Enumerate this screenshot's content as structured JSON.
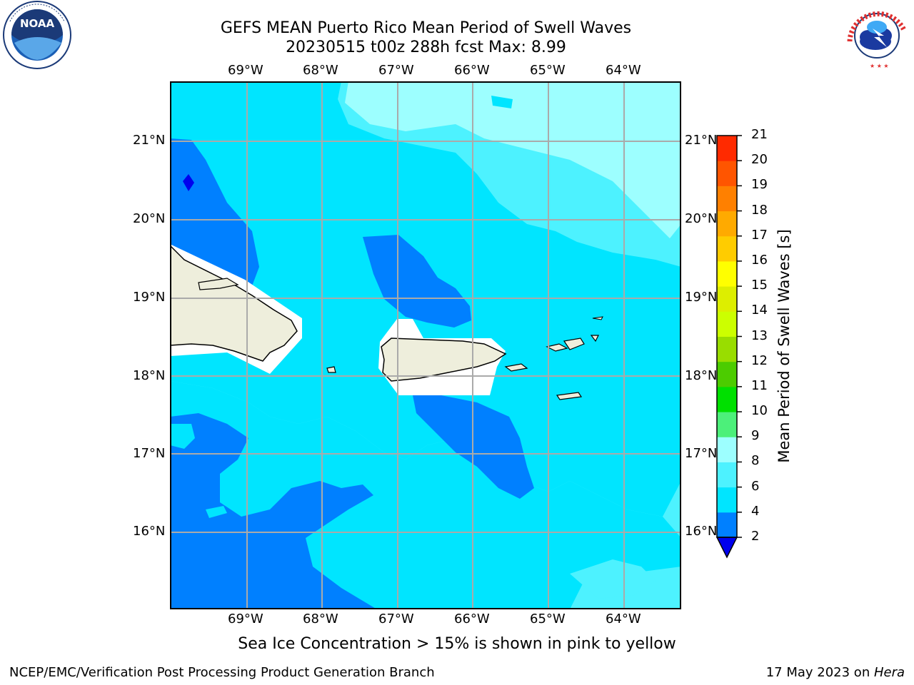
{
  "title": {
    "line1": "GEFS MEAN Puerto Rico Mean Period of Swell Waves",
    "line2": "20230515 t00z 288h fcst   Max: 8.99"
  },
  "axes": {
    "lon_labels": [
      "69°W",
      "68°W",
      "67°W",
      "66°W",
      "65°W",
      "64°W"
    ],
    "lat_labels": [
      "21°N",
      "20°N",
      "19°N",
      "18°N",
      "17°N",
      "16°N"
    ]
  },
  "colorbar": {
    "label": "Mean Period of Swell Waves [s]",
    "ticks": [
      "2",
      "4",
      "6",
      "8",
      "9",
      "10",
      "11",
      "12",
      "13",
      "14",
      "15",
      "16",
      "17",
      "18",
      "19",
      "20",
      "21"
    ],
    "colors": [
      "#0080ff",
      "#00e5ff",
      "#4df2ff",
      "#9dffff",
      "#4cf07a",
      "#00e000",
      "#4ccc00",
      "#99dd00",
      "#ccff00",
      "#ddee00",
      "#ffff00",
      "#ffcc00",
      "#ffaa00",
      "#ff8000",
      "#ff5500",
      "#ff2a00",
      "#ff0000"
    ],
    "under_color": "#0000ee"
  },
  "chart_data": {
    "type": "heatmap",
    "title": "GEFS MEAN Puerto Rico Mean Period of Swell Waves",
    "subtitle": "20230515 t00z 288h fcst   Max: 8.99",
    "variable": "Mean Period of Swell Waves [s]",
    "max": 8.99,
    "levels": [
      2,
      4,
      6,
      8,
      9,
      10,
      11,
      12,
      13,
      14,
      15,
      16,
      17,
      18,
      19,
      20,
      21
    ],
    "lon_range": [
      -70,
      -63.25
    ],
    "lat_range": [
      15,
      21.75
    ],
    "grid": true
  },
  "annotation": "Sea Ice Concentration > 15% is shown in pink to yellow",
  "footer": {
    "left": "NCEP/EMC/Verification Post Processing Product Generation Branch",
    "right_prefix": "17 May 2023 on ",
    "right_host": "Hera"
  },
  "logos": {
    "noaa": "NOAA",
    "nws": "NATIONAL WEATHER SERVICE"
  }
}
